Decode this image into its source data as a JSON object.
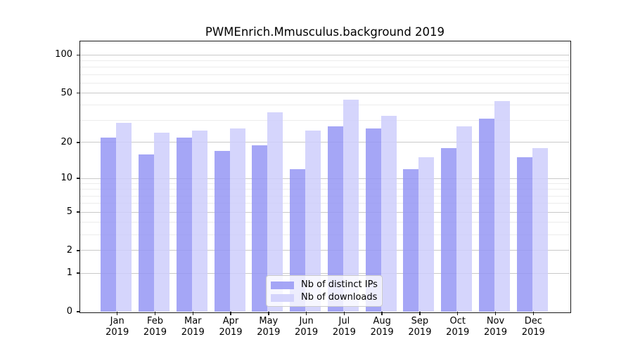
{
  "chart_data": {
    "type": "bar",
    "title": "PWMEnrich.Mmusculus.background 2019",
    "categories": [
      "Jan 2019",
      "Feb 2019",
      "Mar 2019",
      "Apr 2019",
      "May 2019",
      "Jun 2019",
      "Jul 2019",
      "Aug 2019",
      "Sep 2019",
      "Oct 2019",
      "Nov 2019",
      "Dec 2019"
    ],
    "series": [
      {
        "name": "Nb of distinct IPs",
        "color": "#9597F5",
        "alpha": 0.85,
        "values": [
          22,
          16,
          22,
          17,
          19,
          12,
          27,
          26,
          12,
          18,
          31,
          15
        ]
      },
      {
        "name": "Nb of downloads",
        "color": "#CECEFB",
        "alpha": 0.85,
        "values": [
          29,
          24,
          25,
          26,
          35,
          25,
          44,
          33,
          15,
          27,
          43,
          18
        ]
      }
    ],
    "xlabel": "",
    "ylabel": "",
    "y_scale": "log10(1+value)",
    "y_major_ticks": [
      0,
      1,
      2,
      5,
      10,
      20,
      50,
      100
    ],
    "y_minor_ticks": [
      3,
      4,
      6,
      7,
      8,
      9,
      30,
      40,
      60,
      70,
      80,
      90
    ],
    "ylim": [
      0,
      128
    ],
    "grid": true,
    "legend_position": "lower center"
  }
}
